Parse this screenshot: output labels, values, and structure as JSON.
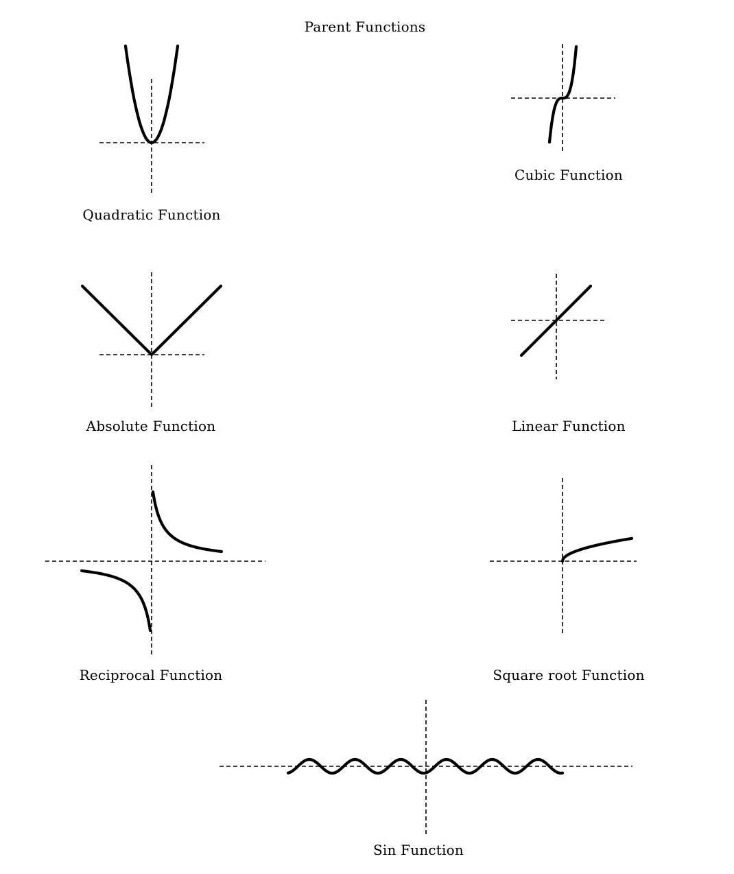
{
  "title": "Parent Functions",
  "functions": {
    "quadratic": {
      "label": "Quadratic Function"
    },
    "cubic": {
      "label": "Cubic Function"
    },
    "absolute": {
      "label": "Absolute Function"
    },
    "linear": {
      "label": "Linear Function"
    },
    "reciprocal": {
      "label": "Reciprocal Function"
    },
    "square_root": {
      "label": "Square root Function"
    },
    "sin": {
      "label": "Sin Function"
    }
  }
}
